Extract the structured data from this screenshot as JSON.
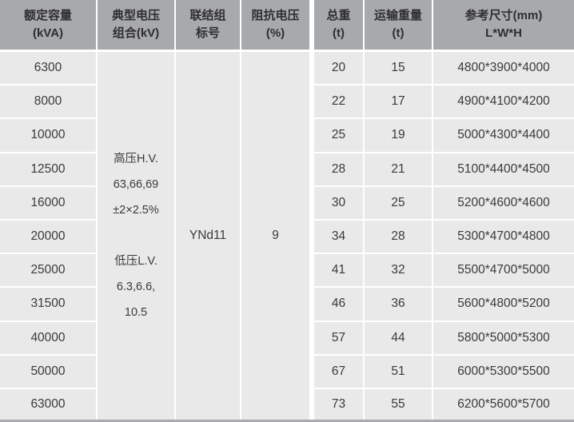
{
  "colors": {
    "header_bg": "#a7a9ac",
    "cell_bg": "#e9e9ea",
    "separator": "#ffffff",
    "bottom_border": "#a9abae",
    "header_text": "#2e2e30",
    "body_text": "#3a3a3c"
  },
  "table": {
    "headers": [
      {
        "line1": "额定容量",
        "line2": "(kVA)"
      },
      {
        "line1": "典型电压",
        "line2": "组合(kV)"
      },
      {
        "line1": "联结组",
        "line2": "标号"
      },
      {
        "line1": "阻抗电压",
        "line2": "(%)"
      },
      {
        "line1": "总重",
        "line2": "(t)"
      },
      {
        "line1": "运输重量",
        "line2": "(t)"
      },
      {
        "line1": "参考尺寸(mm)",
        "line2": "L*W*H"
      }
    ],
    "voltage_combo_lines": [
      "高压H.V.",
      "63,66,69",
      "±2×2.5%",
      "",
      "低压L.V.",
      "6.3,6.6,",
      "10.5"
    ],
    "connection_group": "YNd11",
    "impedance_voltage": "9",
    "rows": [
      {
        "capacity": "6300",
        "total_weight": "20",
        "transport_weight": "15",
        "dimensions": "4800*3900*4000"
      },
      {
        "capacity": "8000",
        "total_weight": "22",
        "transport_weight": "17",
        "dimensions": "4900*4100*4200"
      },
      {
        "capacity": "10000",
        "total_weight": "25",
        "transport_weight": "19",
        "dimensions": "5000*4300*4400"
      },
      {
        "capacity": "12500",
        "total_weight": "28",
        "transport_weight": "21",
        "dimensions": "5100*4400*4500"
      },
      {
        "capacity": "16000",
        "total_weight": "30",
        "transport_weight": "25",
        "dimensions": "5200*4600*4600"
      },
      {
        "capacity": "20000",
        "total_weight": "34",
        "transport_weight": "28",
        "dimensions": "5300*4700*4800"
      },
      {
        "capacity": "25000",
        "total_weight": "41",
        "transport_weight": "32",
        "dimensions": "5500*4700*5000"
      },
      {
        "capacity": "31500",
        "total_weight": "46",
        "transport_weight": "36",
        "dimensions": "5600*4800*5200"
      },
      {
        "capacity": "40000",
        "total_weight": "57",
        "transport_weight": "44",
        "dimensions": "5800*5000*5300"
      },
      {
        "capacity": "50000",
        "total_weight": "67",
        "transport_weight": "51",
        "dimensions": "6000*5300*5500"
      },
      {
        "capacity": "63000",
        "total_weight": "73",
        "transport_weight": "55",
        "dimensions": "6200*5600*5700"
      }
    ]
  },
  "chart_data": {
    "type": "table",
    "title": "",
    "columns": [
      "额定容量(kVA)",
      "典型电压组合(kV)",
      "联结组标号",
      "阻抗电压(%)",
      "总重(t)",
      "运输重量(t)",
      "参考尺寸(mm) L*W*H"
    ],
    "merged_cells": {
      "typical_voltage_combination": "高压H.V. 63,66,69 ±2×2.5%；低压L.V. 6.3,6.6, 10.5",
      "connection_group": "YNd11",
      "impedance_percent": "9"
    },
    "rows": [
      [
        "6300",
        "20",
        "15",
        "4800*3900*4000"
      ],
      [
        "8000",
        "22",
        "17",
        "4900*4100*4200"
      ],
      [
        "10000",
        "25",
        "19",
        "5000*4300*4400"
      ],
      [
        "12500",
        "28",
        "21",
        "5100*4400*4500"
      ],
      [
        "16000",
        "30",
        "25",
        "5200*4600*4600"
      ],
      [
        "20000",
        "34",
        "28",
        "5300*4700*4800"
      ],
      [
        "25000",
        "41",
        "32",
        "5500*4700*5000"
      ],
      [
        "31500",
        "46",
        "36",
        "5600*4800*5200"
      ],
      [
        "40000",
        "57",
        "44",
        "5800*5000*5300"
      ],
      [
        "50000",
        "67",
        "51",
        "6000*5300*5500"
      ],
      [
        "63000",
        "73",
        "55",
        "6200*5600*5700"
      ]
    ]
  }
}
